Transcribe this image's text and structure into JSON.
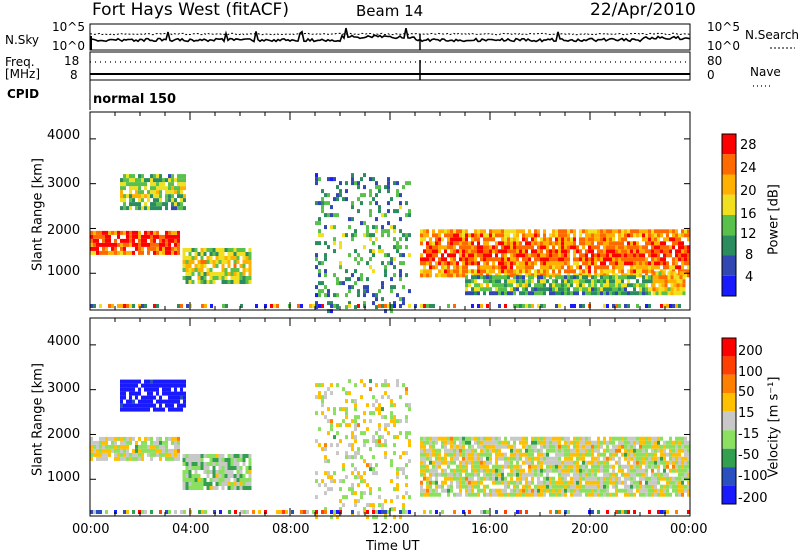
{
  "header": {
    "station": "Fort Hays West (fitACF)",
    "beam": "Beam 14",
    "date": "22/Apr/2010"
  },
  "noise_panel": {
    "left_label": "N.Sky",
    "left_top": "10^5",
    "left_bottom": "10^0",
    "right_label": "N.Search",
    "right_top": "10^5",
    "right_bottom": "10^0"
  },
  "freq_panel": {
    "label_line1": "Freq.",
    "label_line2": "[MHz]",
    "left_ticks": [
      "18",
      "8"
    ],
    "right_ticks": [
      "80",
      "0"
    ],
    "right_label": "Nave"
  },
  "cpid_panel": {
    "label": "CPID",
    "value": "normal 150"
  },
  "power_panel": {
    "ylabel": "Slant Range [km]",
    "yticks": [
      "4000",
      "3000",
      "2000",
      "1000"
    ],
    "colorbar_label": "Power [dB]",
    "colorbar_ticks": [
      "28",
      "24",
      "20",
      "16",
      "12",
      "8",
      "4"
    ],
    "colors": [
      "#1a1aff",
      "#3347b3",
      "#2c8c60",
      "#58c04b",
      "#f0e020",
      "#ffb000",
      "#ff6a00",
      "#ff0000"
    ]
  },
  "velocity_panel": {
    "ylabel": "Slant Range [km]",
    "yticks": [
      "4000",
      "3000",
      "2000",
      "1000"
    ],
    "colorbar_label": "Velocity [m s⁻¹]",
    "colorbar_ticks": [
      "200",
      "100",
      "50",
      "15",
      "-15",
      "-50",
      "-100",
      "-200"
    ],
    "colors": [
      "#1a1aff",
      "#2a4fc0",
      "#33a050",
      "#8ce060",
      "#c8c8c8",
      "#ffc000",
      "#ff8000",
      "#ff4000",
      "#ff0000"
    ]
  },
  "x_axis": {
    "label": "Time UT",
    "ticks": [
      "00:00",
      "04:00",
      "08:00",
      "12:00",
      "16:00",
      "20:00",
      "00:00"
    ]
  },
  "chart_data": [
    {
      "type": "heatmap",
      "title": "Power",
      "xlabel": "Time UT",
      "ylabel": "Slant Range [km]",
      "xlim": [
        0,
        24
      ],
      "ylim": [
        180,
        4600
      ],
      "clim": [
        0,
        32
      ],
      "colorbar": "Power [dB]",
      "regions": [
        {
          "t0": 0.0,
          "t1": 3.6,
          "r0": 1500,
          "r1": 2000,
          "value": 25
        },
        {
          "t0": 1.2,
          "t1": 3.8,
          "r0": 2500,
          "r1": 3300,
          "value": 12
        },
        {
          "t0": 3.7,
          "t1": 6.4,
          "r0": 850,
          "r1": 1600,
          "value": 14
        },
        {
          "t0": 9.0,
          "t1": 12.8,
          "r0": 200,
          "r1": 3300,
          "value": 8
        },
        {
          "t0": 13.2,
          "t1": 24.0,
          "r0": 1000,
          "r1": 2000,
          "value": 22
        },
        {
          "t0": 15.0,
          "t1": 22.5,
          "r0": 600,
          "r1": 1000,
          "value": 10
        },
        {
          "t0": 22.5,
          "t1": 23.8,
          "r0": 600,
          "r1": 1100,
          "value": 18
        }
      ]
    },
    {
      "type": "heatmap",
      "title": "Velocity",
      "xlabel": "Time UT",
      "ylabel": "Slant Range [km]",
      "xlim": [
        0,
        24
      ],
      "ylim": [
        180,
        4600
      ],
      "clim": [
        -200,
        200
      ],
      "colorbar": "Velocity [m s⁻¹]",
      "regions": [
        {
          "t0": 0.0,
          "t1": 3.6,
          "r0": 1500,
          "r1": 2000,
          "value": 0
        },
        {
          "t0": 1.2,
          "t1": 3.8,
          "r0": 2600,
          "r1": 3300,
          "value": -220
        },
        {
          "t0": 3.7,
          "t1": 6.4,
          "r0": 850,
          "r1": 1600,
          "value": -40
        },
        {
          "t0": 9.0,
          "t1": 12.8,
          "r0": 200,
          "r1": 3300,
          "value": 0
        },
        {
          "t0": 13.2,
          "t1": 24.0,
          "r0": 700,
          "r1": 2000,
          "value": 0
        }
      ]
    }
  ]
}
